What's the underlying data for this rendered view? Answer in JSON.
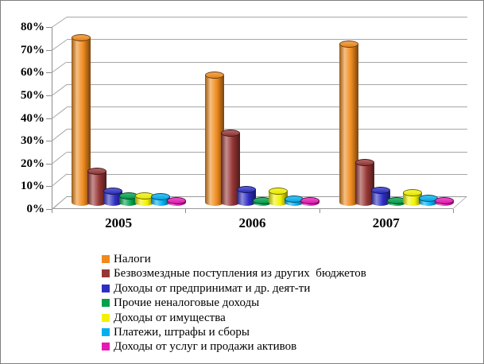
{
  "frame": {
    "background": "#ffffff",
    "border_color": "#7f7f7f",
    "grid_color": "#a6a6a6"
  },
  "chart_data": {
    "type": "bar",
    "style": "3d-cylinder",
    "title": "",
    "xlabel": "",
    "ylabel": "",
    "categories": [
      "2005",
      "2006",
      "2007"
    ],
    "series": [
      {
        "name": "Налоги",
        "color": "#EF8A1D",
        "values": [
          74,
          57,
          71
        ]
      },
      {
        "name": "Безвозмездные поступления из других  бюджетов",
        "color": "#963634",
        "values": [
          14,
          31,
          18
        ]
      },
      {
        "name": "Доходы от предпринимат и др. деят-ти",
        "color": "#2E2EC3",
        "values": [
          5,
          6,
          5.5
        ]
      },
      {
        "name": "Прочие неналоговые доходы",
        "color": "#00A14B",
        "values": [
          3,
          1,
          1
        ]
      },
      {
        "name": "Доходы от имущества",
        "color": "#F2F200",
        "values": [
          3,
          5,
          4.5
        ]
      },
      {
        "name": "Платежи, штрафы и сборы",
        "color": "#00B0F0",
        "values": [
          2.5,
          1.5,
          2
        ]
      },
      {
        "name": "Доходы от услуг и продажи активов",
        "color": "#E51BB5",
        "values": [
          1,
          1,
          1
        ]
      }
    ],
    "ylim": [
      0,
      80
    ],
    "ytick_step": 10,
    "ytick_labels": [
      "0%",
      "10%",
      "20%",
      "30%",
      "40%",
      "50%",
      "60%",
      "70%",
      "80%"
    ],
    "grid": true,
    "legend_position": "bottom-left"
  }
}
